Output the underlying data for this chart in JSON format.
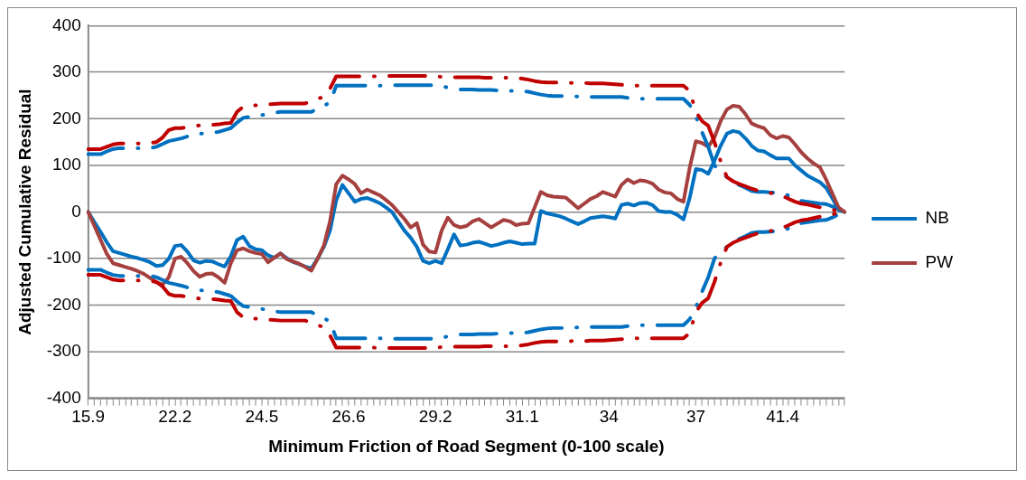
{
  "chart_data": {
    "type": "line",
    "xlabel": "Minimum Friction of Road Segment (0-100 scale)",
    "ylabel": "Adjusted Cumulative Residual",
    "categories": [
      "15.9",
      null,
      null,
      null,
      null,
      null,
      null,
      null,
      null,
      null,
      null,
      null,
      null,
      null,
      "22.2",
      null,
      null,
      null,
      null,
      null,
      null,
      null,
      null,
      null,
      null,
      null,
      null,
      null,
      "24.5",
      null,
      null,
      null,
      null,
      null,
      null,
      null,
      null,
      null,
      null,
      null,
      null,
      null,
      "26.6",
      null,
      null,
      null,
      null,
      null,
      null,
      null,
      null,
      null,
      null,
      null,
      null,
      null,
      "29.2",
      null,
      null,
      null,
      null,
      null,
      null,
      null,
      null,
      null,
      null,
      null,
      null,
      null,
      "31.1",
      null,
      null,
      null,
      null,
      null,
      null,
      null,
      null,
      null,
      null,
      null,
      null,
      null,
      "34",
      null,
      null,
      null,
      null,
      null,
      null,
      null,
      null,
      null,
      null,
      null,
      null,
      null,
      "37",
      null,
      null,
      null,
      null,
      null,
      null,
      null,
      null,
      null,
      null,
      null,
      null,
      null,
      "41.4",
      null,
      null,
      null,
      null,
      null,
      null,
      null,
      null,
      null,
      null
    ],
    "series": [
      {
        "name": "NB",
        "color": "#0070c0",
        "line_style": "solid",
        "values": [
          0,
          -22,
          -43,
          -65,
          -84,
          -88,
          -92,
          -96,
          -99,
          -103,
          -108,
          -116,
          -114,
          -100,
          -73,
          -71,
          -85,
          -104,
          -109,
          -105,
          -106,
          -112,
          -117,
          -95,
          -60,
          -53,
          -73,
          -80,
          -82,
          -93,
          -98,
          -89,
          -99,
          -107,
          -112,
          -117,
          -121,
          -100,
          -75,
          -40,
          25,
          58,
          40,
          22,
          28,
          30,
          25,
          19,
          10,
          0,
          -20,
          -40,
          -55,
          -75,
          -105,
          -110,
          -105,
          -110,
          -80,
          -48,
          -72,
          -70,
          -66,
          -64,
          -68,
          -73,
          -70,
          -66,
          -63,
          -66,
          -69,
          -68,
          -68,
          2,
          -3,
          -6,
          -9,
          -14,
          -20,
          -26,
          -20,
          -13,
          -11,
          -9,
          -11,
          -14,
          15,
          18,
          14,
          19,
          20,
          15,
          2,
          0,
          0,
          -6,
          -16,
          30,
          92,
          90,
          82,
          110,
          142,
          168,
          174,
          171,
          158,
          142,
          132,
          130,
          122,
          115,
          115,
          115,
          100,
          89,
          78,
          71,
          64,
          52,
          30,
          5,
          0
        ]
      },
      {
        "name": "PW",
        "color": "#a5403f",
        "line_style": "solid",
        "values": [
          0,
          -30,
          -60,
          -90,
          -110,
          -114,
          -118,
          -122,
          -127,
          -133,
          -142,
          -151,
          -156,
          -140,
          -100,
          -96,
          -110,
          -127,
          -139,
          -133,
          -132,
          -140,
          -152,
          -110,
          -82,
          -78,
          -84,
          -88,
          -90,
          -108,
          -98,
          -89,
          -101,
          -106,
          -111,
          -118,
          -126,
          -100,
          -72,
          -20,
          60,
          78,
          70,
          60,
          40,
          48,
          42,
          36,
          26,
          15,
          0,
          -15,
          -33,
          -24,
          -70,
          -85,
          -87,
          -40,
          -12,
          -28,
          -33,
          -30,
          -20,
          -15,
          -24,
          -33,
          -25,
          -17,
          -20,
          -28,
          -25,
          -24,
          10,
          43,
          36,
          33,
          32,
          31,
          20,
          8,
          18,
          28,
          34,
          43,
          38,
          33,
          58,
          70,
          62,
          68,
          66,
          61,
          48,
          42,
          40,
          28,
          22,
          95,
          152,
          148,
          140,
          160,
          195,
          220,
          228,
          226,
          210,
          190,
          184,
          180,
          165,
          158,
          163,
          160,
          145,
          128,
          115,
          104,
          96,
          70,
          40,
          10,
          0
        ]
      },
      {
        "color": "#0070c0",
        "line_style": "dashed",
        "values": [
          124,
          124,
          124,
          130,
          135,
          137,
          137,
          137,
          137,
          137,
          137,
          140,
          146,
          152,
          155,
          158,
          162,
          166,
          168,
          169,
          170,
          172,
          176,
          180,
          192,
          202,
          204,
          206,
          208,
          211,
          213,
          215,
          215,
          215,
          215,
          215,
          215,
          222,
          228,
          235,
          271,
          271,
          271,
          271,
          271,
          271,
          271,
          271,
          272,
          272,
          272,
          272,
          272,
          272,
          272,
          272,
          272,
          270,
          267,
          265,
          263,
          263,
          263,
          262,
          262,
          262,
          261,
          261,
          260,
          260,
          260,
          258,
          255,
          252,
          250,
          249,
          249,
          249,
          248,
          248,
          247,
          247,
          247,
          247,
          247,
          247,
          247,
          245,
          244,
          243,
          243,
          243,
          243,
          243,
          243,
          243,
          243,
          230,
          205,
          171,
          140,
          100,
          85,
          75,
          65,
          58,
          52,
          45,
          43,
          43,
          42,
          41,
          40,
          35,
          30,
          24,
          22,
          20,
          18,
          17,
          12,
          5,
          0
        ]
      },
      {
        "color": "#0070c0",
        "line_style": "dashed",
        "values": [
          -124,
          -124,
          -124,
          -130,
          -135,
          -137,
          -137,
          -137,
          -137,
          -137,
          -137,
          -140,
          -146,
          -152,
          -155,
          -158,
          -162,
          -166,
          -168,
          -169,
          -170,
          -172,
          -176,
          -180,
          -192,
          -202,
          -204,
          -206,
          -208,
          -211,
          -213,
          -215,
          -215,
          -215,
          -215,
          -215,
          -215,
          -222,
          -228,
          -235,
          -271,
          -271,
          -271,
          -271,
          -271,
          -271,
          -271,
          -271,
          -272,
          -272,
          -272,
          -272,
          -272,
          -272,
          -272,
          -272,
          -272,
          -270,
          -267,
          -265,
          -263,
          -263,
          -263,
          -262,
          -262,
          -262,
          -261,
          -261,
          -260,
          -260,
          -260,
          -258,
          -255,
          -252,
          -250,
          -249,
          -249,
          -249,
          -248,
          -248,
          -247,
          -247,
          -247,
          -247,
          -247,
          -247,
          -247,
          -245,
          -244,
          -243,
          -243,
          -243,
          -243,
          -243,
          -243,
          -243,
          -243,
          -230,
          -205,
          -171,
          -140,
          -100,
          -85,
          -75,
          -65,
          -58,
          -52,
          -45,
          -43,
          -43,
          -42,
          -41,
          -40,
          -35,
          -30,
          -24,
          -22,
          -20,
          -18,
          -17,
          -12,
          -5,
          0
        ]
      },
      {
        "color": "#c00000",
        "line_style": "dashed",
        "values": [
          135,
          135,
          135,
          140,
          145,
          147,
          147,
          147,
          147,
          147,
          148,
          150,
          160,
          176,
          180,
          180,
          182,
          184,
          186,
          187,
          187,
          188,
          190,
          191,
          215,
          226,
          228,
          229,
          230,
          231,
          232,
          233,
          233,
          233,
          233,
          233,
          238,
          243,
          247,
          265,
          291,
          291,
          291,
          291,
          291,
          291,
          291,
          292,
          292,
          292,
          292,
          292,
          292,
          292,
          292,
          292,
          291,
          290,
          290,
          289,
          289,
          289,
          289,
          289,
          288,
          288,
          288,
          288,
          288,
          288,
          286,
          284,
          281,
          279,
          278,
          278,
          278,
          278,
          277,
          277,
          277,
          276,
          276,
          276,
          275,
          274,
          273,
          272,
          271,
          271,
          271,
          271,
          271,
          271,
          271,
          271,
          271,
          260,
          215,
          195,
          185,
          150,
          109,
          75,
          66,
          60,
          55,
          50,
          46,
          44,
          41,
          38,
          34,
          28,
          22,
          18,
          16,
          13,
          10,
          8,
          5,
          2,
          0
        ]
      },
      {
        "color": "#c00000",
        "line_style": "dashed",
        "values": [
          -135,
          -135,
          -135,
          -140,
          -145,
          -147,
          -147,
          -147,
          -147,
          -147,
          -148,
          -150,
          -160,
          -176,
          -180,
          -180,
          -182,
          -184,
          -186,
          -187,
          -187,
          -188,
          -190,
          -191,
          -215,
          -226,
          -228,
          -229,
          -230,
          -231,
          -232,
          -233,
          -233,
          -233,
          -233,
          -233,
          -238,
          -243,
          -247,
          -265,
          -291,
          -291,
          -291,
          -291,
          -291,
          -291,
          -291,
          -292,
          -292,
          -292,
          -292,
          -292,
          -292,
          -292,
          -292,
          -292,
          -291,
          -290,
          -290,
          -289,
          -289,
          -289,
          -289,
          -289,
          -288,
          -288,
          -288,
          -288,
          -288,
          -288,
          -286,
          -284,
          -281,
          -279,
          -278,
          -278,
          -278,
          -278,
          -277,
          -277,
          -277,
          -276,
          -276,
          -276,
          -275,
          -274,
          -273,
          -272,
          -271,
          -271,
          -271,
          -271,
          -271,
          -271,
          -271,
          -271,
          -271,
          -260,
          -215,
          -195,
          -185,
          -150,
          -109,
          -75,
          -66,
          -60,
          -55,
          -50,
          -46,
          -44,
          -41,
          -38,
          -34,
          -28,
          -22,
          -18,
          -16,
          -13,
          -10,
          -8,
          -5,
          -2,
          0
        ]
      }
    ],
    "ylim": [
      -400,
      400
    ],
    "yticks": [
      -400,
      -300,
      -200,
      -100,
      0,
      100,
      200,
      300,
      400
    ],
    "grid": "y",
    "legend": "right",
    "marker": "none"
  }
}
